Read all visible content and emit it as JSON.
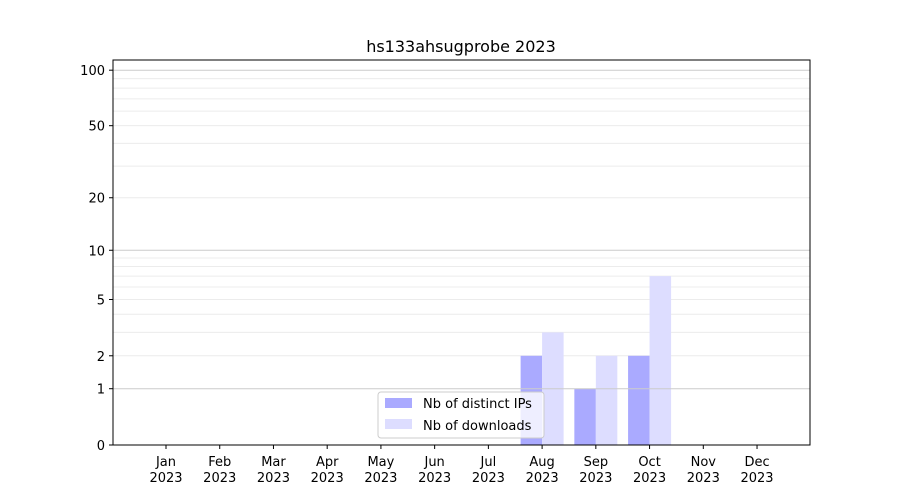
{
  "chart_data": {
    "type": "bar",
    "title": "hs133ahsugprobe 2023",
    "xlabel": "",
    "ylabel": "",
    "yscale": "log(1+y)",
    "ylim": [
      0,
      120
    ],
    "yticks": [
      0,
      1,
      2,
      5,
      10,
      20,
      50,
      100
    ],
    "grid": true,
    "legend_position": "lower-center",
    "categories": [
      "Jan\n2023",
      "Feb\n2023",
      "Mar\n2023",
      "Apr\n2023",
      "May\n2023",
      "Jun\n2023",
      "Jul\n2023",
      "Aug\n2023",
      "Sep\n2023",
      "Oct\n2023",
      "Nov\n2023",
      "Dec\n2023"
    ],
    "series": [
      {
        "name": "Nb of distinct IPs",
        "color": "#aaaaff",
        "values": [
          0,
          0,
          0,
          0,
          0,
          0,
          0,
          2,
          1,
          2,
          0,
          0
        ]
      },
      {
        "name": "Nb of downloads",
        "color": "#ddddff",
        "values": [
          0,
          0,
          0,
          0,
          0,
          0,
          0,
          3,
          2,
          7,
          0,
          0
        ]
      }
    ]
  }
}
